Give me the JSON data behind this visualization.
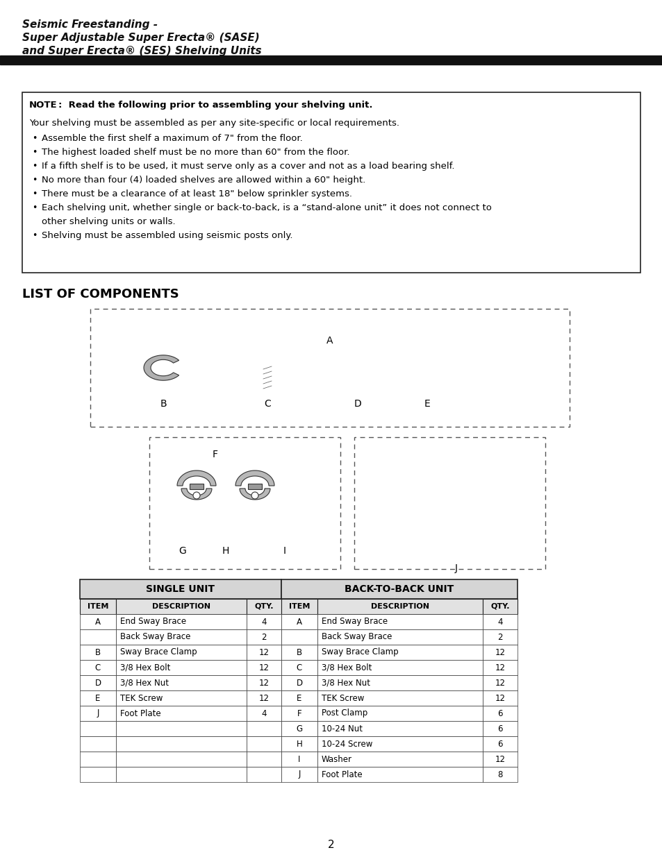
{
  "page_bg": "#ffffff",
  "title_line1": "Seismic Freestanding -",
  "title_line2": "Super Adjustable Super Erecta® (SASE)",
  "title_line3": "and Super Erecta® (SES) Shelving Units",
  "note_intro_bold": "NOTE",
  "note_intro_rest": ":  Read the following prior to assembling your shelving unit.",
  "note_body": "Your shelving must be assembled as per any site-specific or local requirements.",
  "bullets": [
    "Assemble the first shelf a maximum of 7\" from the floor.",
    "The highest loaded shelf must be no more than 60\" from the floor.",
    "If a fifth shelf is to be used, it must serve only as a cover and not as a load bearing shelf.",
    "No more than four (4) loaded shelves are allowed within a 60\" height.",
    "There must be a clearance of at least 18\" below sprinkler systems.",
    "Each shelving unit, whether single or back-to-back, is a “stand-alone unit” it does not connect to",
    "other shelving units or walls.",
    "Shelving must be assembled using seismic posts only."
  ],
  "bullet_flags": [
    true,
    true,
    true,
    true,
    true,
    true,
    false,
    true
  ],
  "list_of_components_title": "LIST OF COMPONENTS",
  "table_single_unit_header": "SINGLE UNIT",
  "table_btb_header": "BACK-TO-BACK UNIT",
  "table_col_headers": [
    "ITEM",
    "DESCRIPTION",
    "QTY."
  ],
  "single_unit_rows": [
    [
      "A",
      "End Sway Brace",
      "4"
    ],
    [
      "",
      "Back Sway Brace",
      "2"
    ],
    [
      "B",
      "Sway Brace Clamp",
      "12"
    ],
    [
      "C",
      "3/8 Hex Bolt",
      "12"
    ],
    [
      "D",
      "3/8 Hex Nut",
      "12"
    ],
    [
      "E",
      "TEK Screw",
      "12"
    ],
    [
      "J",
      "Foot Plate",
      "4"
    ],
    [
      "",
      "",
      ""
    ],
    [
      "",
      "",
      ""
    ],
    [
      "",
      "",
      ""
    ],
    [
      "",
      "",
      ""
    ]
  ],
  "btb_unit_rows": [
    [
      "A",
      "End Sway Brace",
      "4"
    ],
    [
      "",
      "Back Sway Brace",
      "2"
    ],
    [
      "B",
      "Sway Brace Clamp",
      "12"
    ],
    [
      "C",
      "3/8 Hex Bolt",
      "12"
    ],
    [
      "D",
      "3/8 Hex Nut",
      "12"
    ],
    [
      "E",
      "TEK Screw",
      "12"
    ],
    [
      "F",
      "Post Clamp",
      "6"
    ],
    [
      "G",
      "10-24 Nut",
      "6"
    ],
    [
      "H",
      "10-24 Screw",
      "6"
    ],
    [
      "I",
      "Washer",
      "12"
    ],
    [
      "J",
      "Foot Plate",
      "8"
    ]
  ],
  "page_number": "2"
}
